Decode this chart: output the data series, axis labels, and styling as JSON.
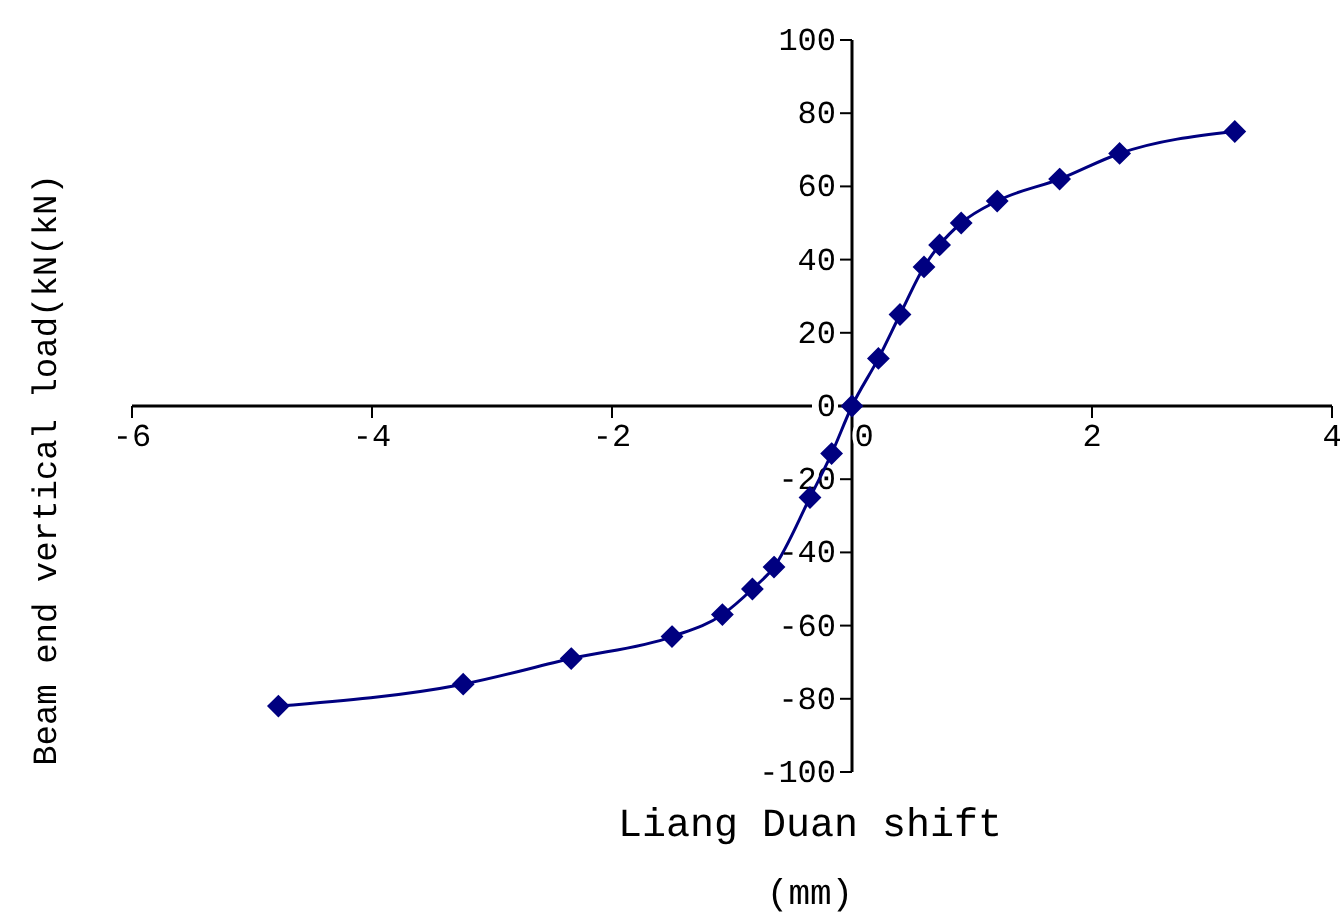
{
  "chart_data": {
    "type": "line",
    "xlabel": "Liang Duan shift (mm)",
    "ylabel": "Beam end vertical load(kN(kN)",
    "xlim": [
      -6,
      4
    ],
    "ylim": [
      -100,
      100
    ],
    "xticks": [
      -6,
      -4,
      -2,
      0,
      2,
      4
    ],
    "yticks": [
      -100,
      -80,
      -60,
      -40,
      -20,
      0,
      20,
      40,
      60,
      80,
      100
    ],
    "grid": false,
    "marker": "diamond",
    "line_style": "solid",
    "series": [
      {
        "color": "#000080",
        "x": [
          -4.78,
          -3.24,
          -2.34,
          -1.5,
          -1.08,
          -0.83,
          -0.65,
          -0.35,
          -0.17,
          0,
          0.22,
          0.4,
          0.6,
          0.73,
          0.91,
          1.21,
          1.73,
          2.23,
          3.19
        ],
        "values": [
          -82,
          -76,
          -69,
          -63,
          -57,
          -50,
          -44,
          -25,
          -13,
          0,
          13,
          25,
          38,
          44,
          50,
          56,
          62,
          69,
          75
        ]
      }
    ]
  }
}
